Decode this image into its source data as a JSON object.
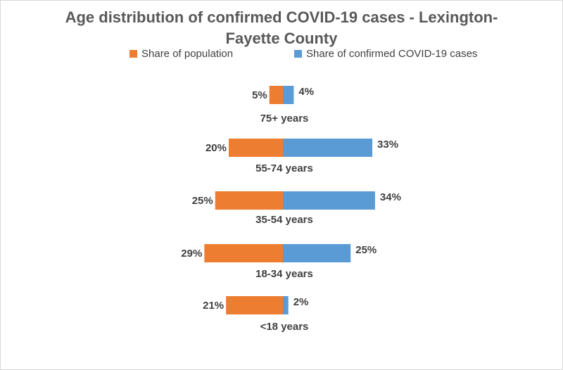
{
  "chart_data": {
    "type": "bar",
    "title_lines": [
      "Age distribution of confirmed COVID-19 cases -  Lexington-",
      "Fayette County"
    ],
    "categories": [
      "75+ years",
      "55-74 years",
      "35-54 years",
      "18-34 years",
      "<18 years"
    ],
    "series": [
      {
        "name": "Share of population",
        "values": [
          5,
          20,
          25,
          29,
          21
        ],
        "color": "#ed7d31"
      },
      {
        "name": "Share of confirmed COVID-19 cases",
        "values": [
          4,
          33,
          34,
          25,
          2
        ],
        "color": "#5b9bd5"
      }
    ],
    "value_labels": {
      "population": [
        "5%",
        "20%",
        "25%",
        "29%",
        "21%"
      ],
      "cases": [
        "4%",
        "33%",
        "34%",
        "25%",
        "2%"
      ]
    },
    "orientation": "horizontal-butterfly",
    "legend_position": "top",
    "grid": false
  }
}
